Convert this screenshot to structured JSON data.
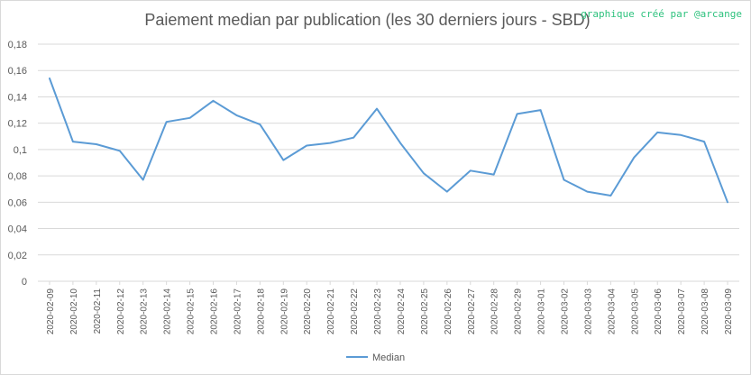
{
  "chart_data": {
    "type": "line",
    "title": "Paiement median par publication (les 30 derniers jours - SBD)",
    "credit": "graphique créé par @arcange",
    "xlabel": "",
    "ylabel": "",
    "ylim": [
      0,
      0.18
    ],
    "y_ticks": [
      "0",
      "0,02",
      "0,04",
      "0,06",
      "0,08",
      "0,1",
      "0,12",
      "0,14",
      "0,16",
      "0,18"
    ],
    "grid": true,
    "legend_position": "bottom",
    "categories": [
      "2020-02-09",
      "2020-02-10",
      "2020-02-11",
      "2020-02-12",
      "2020-02-13",
      "2020-02-14",
      "2020-02-15",
      "2020-02-16",
      "2020-02-17",
      "2020-02-18",
      "2020-02-19",
      "2020-02-20",
      "2020-02-21",
      "2020-02-22",
      "2020-02-23",
      "2020-02-24",
      "2020-02-25",
      "2020-02-26",
      "2020-02-27",
      "2020-02-28",
      "2020-02-29",
      "2020-03-01",
      "2020-03-02",
      "2020-03-03",
      "2020-03-04",
      "2020-03-05",
      "2020-03-06",
      "2020-03-07",
      "2020-03-08",
      "2020-03-09"
    ],
    "series": [
      {
        "name": "Median",
        "color": "#5b9bd5",
        "values": [
          0.154,
          0.106,
          0.104,
          0.099,
          0.077,
          0.121,
          0.124,
          0.137,
          0.126,
          0.119,
          0.092,
          0.103,
          0.105,
          0.109,
          0.131,
          0.105,
          0.082,
          0.068,
          0.084,
          0.081,
          0.127,
          0.13,
          0.077,
          0.068,
          0.065,
          0.094,
          0.113,
          0.111,
          0.106,
          0.06
        ]
      }
    ]
  }
}
